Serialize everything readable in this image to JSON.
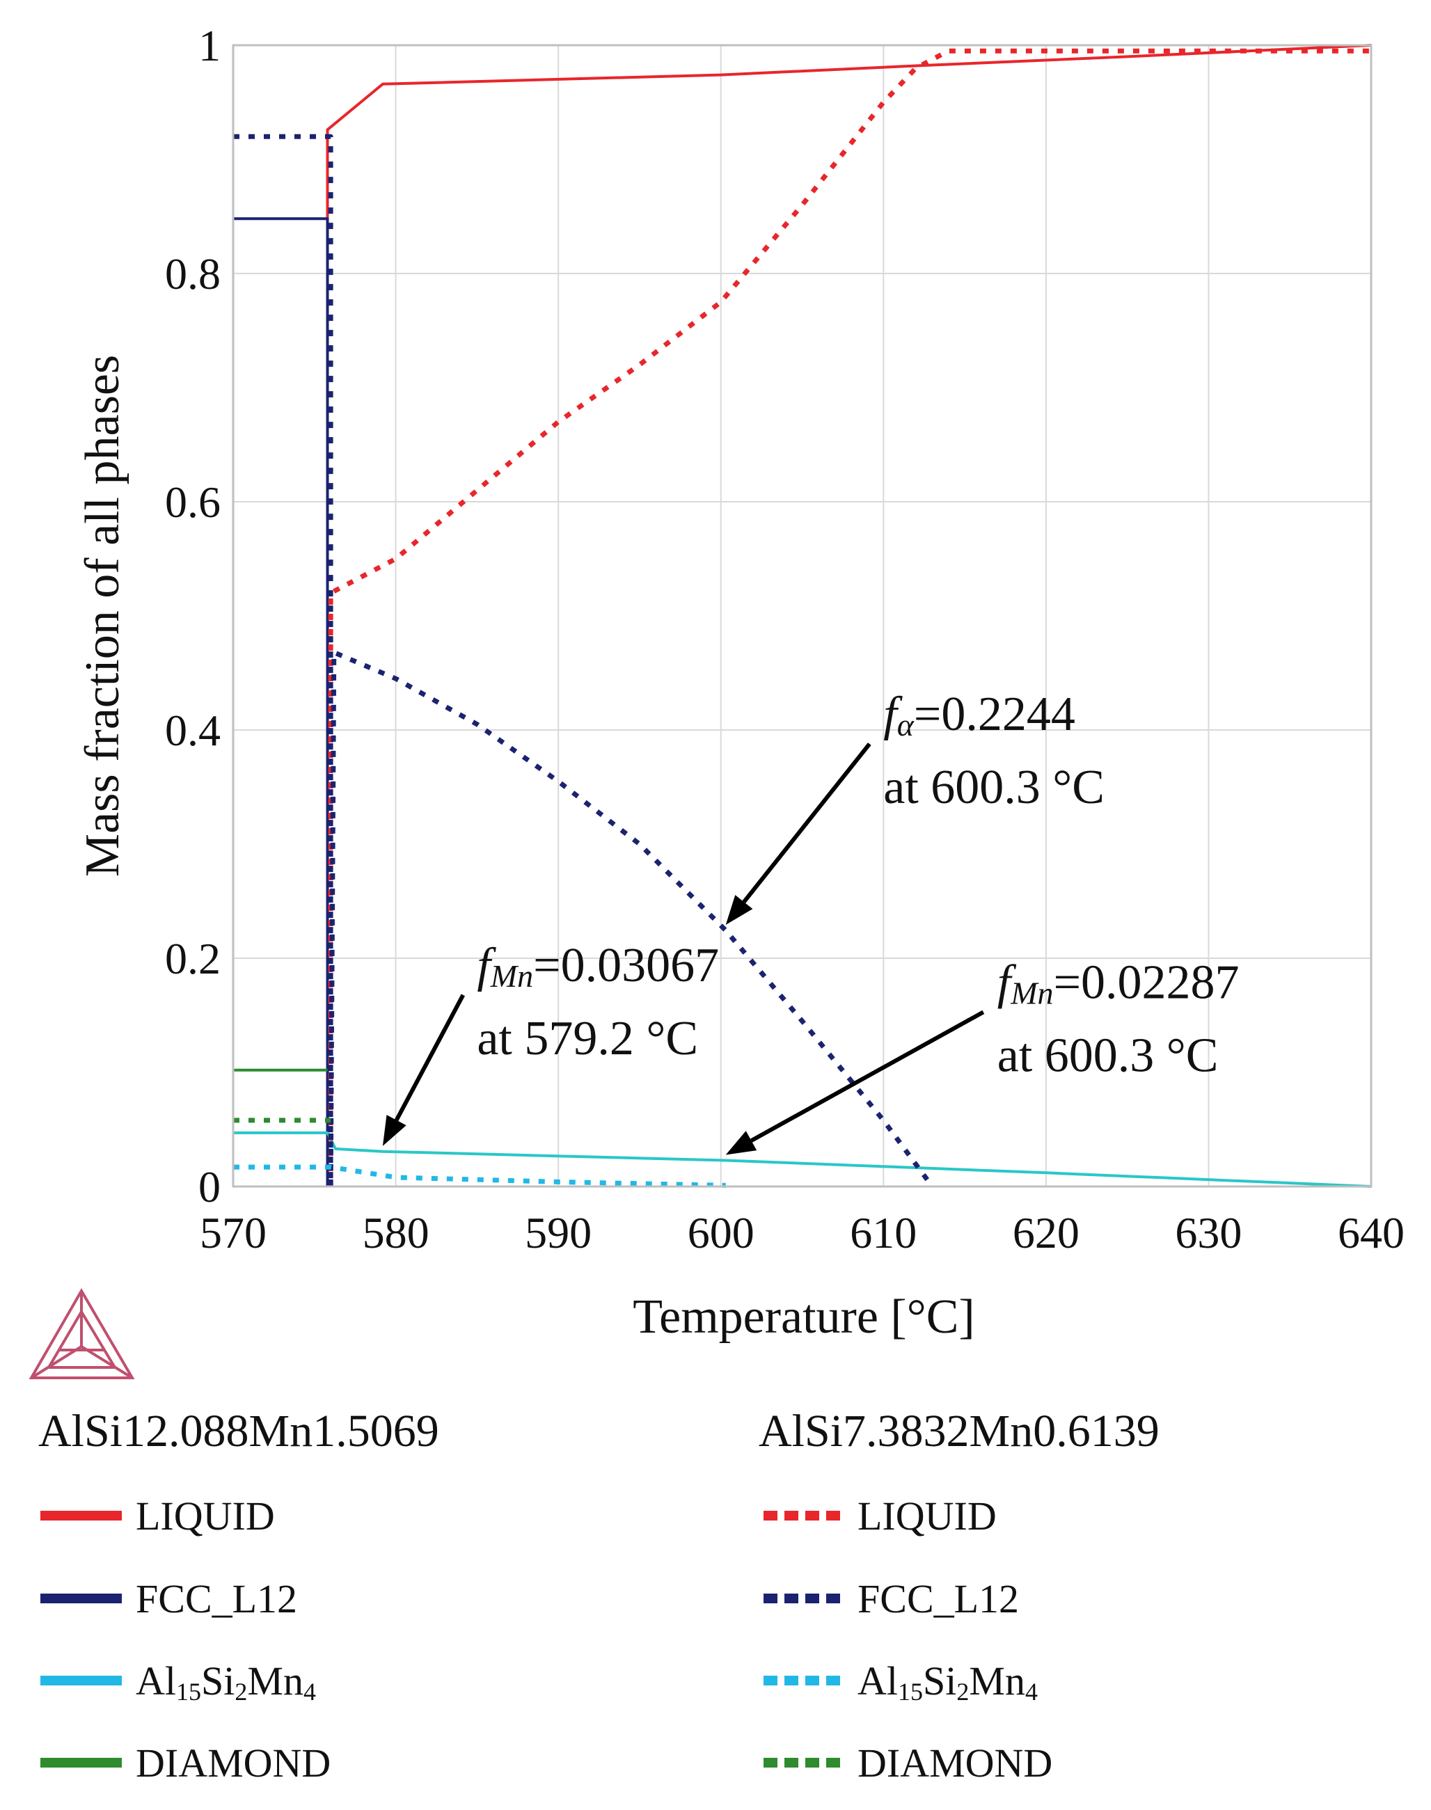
{
  "chart_data": {
    "type": "line",
    "title": "",
    "xlabel": "Temperature [°C]",
    "ylabel": "Mass fraction of all phases",
    "xlim": [
      570,
      640
    ],
    "ylim": [
      0,
      1
    ],
    "xticks": [
      "570",
      "580",
      "590",
      "600",
      "610",
      "620",
      "630",
      "640"
    ],
    "yticks": [
      "0",
      "0.2",
      "0.4",
      "0.6",
      "0.8",
      "1"
    ],
    "grid": true,
    "series": [
      {
        "name": "LIQUID",
        "alloy": "AlSi12.088Mn1.5069",
        "color": "#e8262b",
        "style": "solid",
        "x": [
          575.8,
          575.8,
          579.2,
          600,
          612,
          625,
          640
        ],
        "y": [
          0,
          0.926,
          0.966,
          0.974,
          0.982,
          0.99,
          1.0
        ]
      },
      {
        "name": "FCC_L12",
        "alloy": "AlSi12.088Mn1.5069",
        "color": "#1b2370",
        "style": "solid",
        "x": [
          570,
          575.8,
          575.8
        ],
        "y": [
          0.848,
          0.848,
          0
        ]
      },
      {
        "name": "Al15Si2Mn4",
        "alloy": "AlSi12.088Mn1.5069",
        "color": "#29c7c7",
        "style": "solid",
        "x": [
          570,
          575.8,
          576.3,
          579.2,
          600.3,
          620,
          640
        ],
        "y": [
          0.047,
          0.047,
          0.033,
          0.03067,
          0.02287,
          0.012,
          0
        ]
      },
      {
        "name": "DIAMOND",
        "alloy": "AlSi12.088Mn1.5069",
        "color": "#2e8b2e",
        "style": "solid",
        "x": [
          570,
          575.8
        ],
        "y": [
          0.102,
          0.102
        ]
      },
      {
        "name": "LIQUID",
        "alloy": "AlSi7.3832Mn0.6139",
        "color": "#e8262b",
        "style": "dotted",
        "x": [
          576,
          576,
          580,
          585,
          590,
          595,
          600,
          605,
          610,
          612,
          614,
          620,
          630,
          640
        ],
        "y": [
          0,
          0.52,
          0.55,
          0.61,
          0.67,
          0.72,
          0.775,
          0.86,
          0.95,
          0.98,
          0.995,
          0.995,
          0.995,
          0.995
        ]
      },
      {
        "name": "FCC_L12",
        "alloy": "AlSi7.3832Mn0.6139",
        "color": "#1b2370",
        "style": "dotted",
        "x": [
          570,
          576,
          576,
          576.2,
          580,
          585,
          590,
          595,
          600.3,
          605,
          610,
          613
        ],
        "y": [
          0.92,
          0.92,
          0,
          0.468,
          0.445,
          0.405,
          0.355,
          0.3,
          0.2244,
          0.145,
          0.058,
          0
        ]
      },
      {
        "name": "Al15Si2Mn4",
        "alloy": "AlSi7.3832Mn0.6139",
        "color": "#22b8e6",
        "style": "dotted",
        "x": [
          570,
          576,
          580,
          590,
          600.3
        ],
        "y": [
          0.017,
          0.017,
          0.008,
          0.004,
          0.001
        ]
      },
      {
        "name": "DIAMOND",
        "alloy": "AlSi7.3832Mn0.6139",
        "color": "#2e8b2e",
        "style": "dotted",
        "x": [
          570,
          576
        ],
        "y": [
          0.058,
          0.058
        ]
      }
    ],
    "annotations": [
      {
        "symbol": "f",
        "sub": "α",
        "value": "=0.2244",
        "line2": "at 600.3 °C",
        "target": [
          600.3,
          0.2244
        ],
        "text_anchor": [
          610,
          0.4
        ]
      },
      {
        "symbol": "f",
        "sub": "Mn",
        "value": "=0.03067",
        "line2": "at 579.2 °C",
        "target": [
          579.2,
          0.03067
        ],
        "text_anchor": [
          585,
          0.18
        ]
      },
      {
        "symbol": "f",
        "sub": "Mn",
        "value": "=0.02287",
        "line2": "at 600.3 °C",
        "target": [
          600.3,
          0.02287
        ],
        "text_anchor": [
          617,
          0.165
        ]
      }
    ]
  },
  "legend": {
    "left_heading": "AlSi12.088Mn1.5069",
    "right_heading": "AlSi7.3832Mn0.6139",
    "items": [
      {
        "label": "LIQUID",
        "color": "#e8262b"
      },
      {
        "label": "FCC_L12",
        "color": "#1b2370"
      },
      {
        "label_parts": [
          "Al",
          "15",
          "Si",
          "2",
          "Mn",
          "4"
        ],
        "color": "#22b8e6"
      },
      {
        "label": "DIAMOND",
        "color": "#2e8b2e"
      }
    ]
  }
}
